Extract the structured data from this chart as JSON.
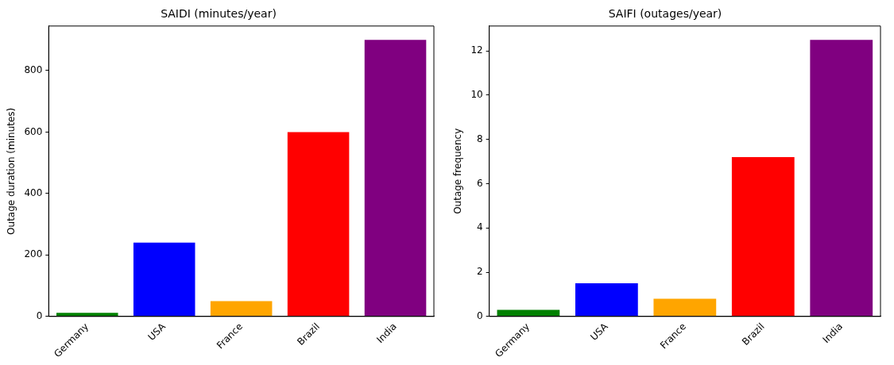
{
  "chart_data": [
    {
      "type": "bar",
      "title": "SAIDI (minutes/year)",
      "ylabel": "Outage duration (minutes)",
      "categories": [
        "Germany",
        "USA",
        "France",
        "Brazil",
        "India"
      ],
      "values": [
        12,
        240,
        50,
        600,
        900
      ],
      "colors": [
        "#008000",
        "#0000ff",
        "#ffa500",
        "#ff0000",
        "#800080"
      ],
      "ylim": [
        0,
        945
      ],
      "yticks": [
        0,
        200,
        400,
        600,
        800
      ],
      "grid": false,
      "legend": false
    },
    {
      "type": "bar",
      "title": "SAIFI (outages/year)",
      "ylabel": "Outage frequency",
      "categories": [
        "Germany",
        "USA",
        "France",
        "Brazil",
        "India"
      ],
      "values": [
        0.3,
        1.5,
        0.8,
        7.2,
        12.5
      ],
      "colors": [
        "#008000",
        "#0000ff",
        "#ffa500",
        "#ff0000",
        "#800080"
      ],
      "ylim": [
        0,
        13.125
      ],
      "yticks": [
        0,
        2,
        4,
        6,
        8,
        10,
        12
      ],
      "grid": false,
      "legend": false
    }
  ]
}
